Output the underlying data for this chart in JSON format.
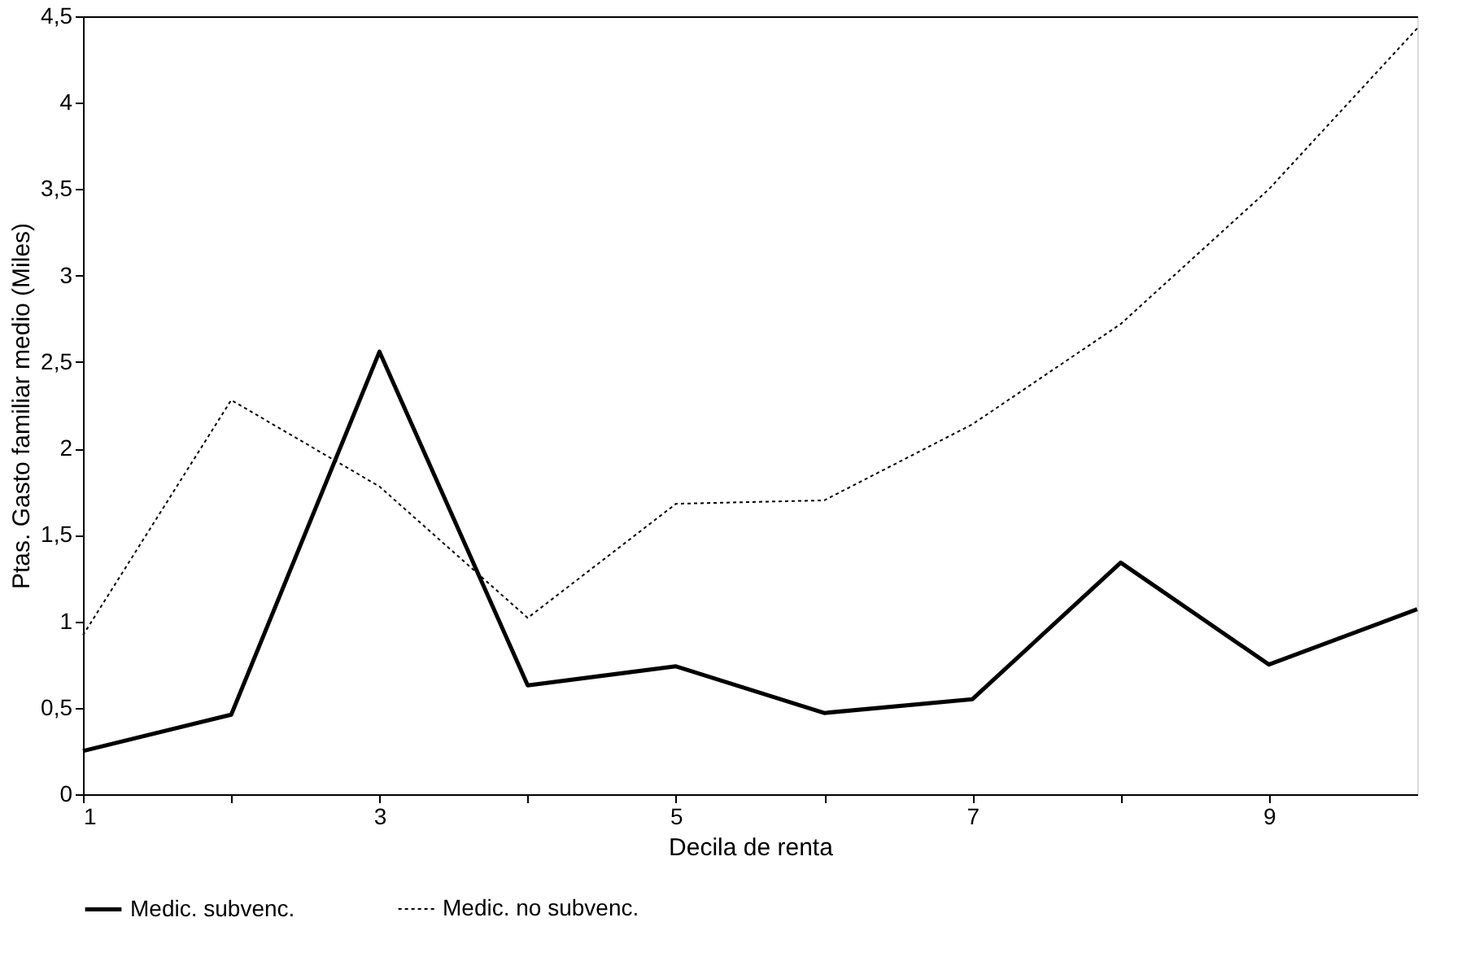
{
  "chart_data": {
    "type": "line",
    "xlabel": "Decila de renta",
    "ylabel": "Ptas. Gasto familiar medio (Miles)",
    "x": [
      1,
      2,
      3,
      4,
      5,
      6,
      7,
      8,
      9,
      10
    ],
    "xlim": [
      1,
      10
    ],
    "xticks": [
      1,
      {
        "value": 2,
        "label": null
      },
      3,
      {
        "value": 4,
        "label": null
      },
      5,
      {
        "value": 6,
        "label": null
      },
      7,
      {
        "value": 8,
        "label": null
      },
      9
    ],
    "ylim": [
      0,
      4.5
    ],
    "yticks": [
      0,
      {
        "value": 0.5,
        "label": "0,5"
      },
      1,
      {
        "value": 1.5,
        "label": "1,5"
      },
      2,
      {
        "value": 2.5,
        "label": "2,5"
      },
      3,
      {
        "value": 3.5,
        "label": "3,5"
      },
      4,
      {
        "value": 4.5,
        "label": "4,5"
      }
    ],
    "series": [
      {
        "name": "Medic. subvenc.",
        "color": "#000000",
        "line_style": "solid",
        "values": [
          0.25,
          0.46,
          2.56,
          0.63,
          0.74,
          0.47,
          0.55,
          1.34,
          0.75,
          1.07
        ]
      },
      {
        "name": "Medic. no subvenc.",
        "color": "#000000",
        "line_style": "dotted",
        "values": [
          0.92,
          2.28,
          1.78,
          1.02,
          1.68,
          1.7,
          2.14,
          2.72,
          3.5,
          4.43
        ]
      }
    ],
    "legend": "bottom",
    "grid": false,
    "marker": "none"
  }
}
